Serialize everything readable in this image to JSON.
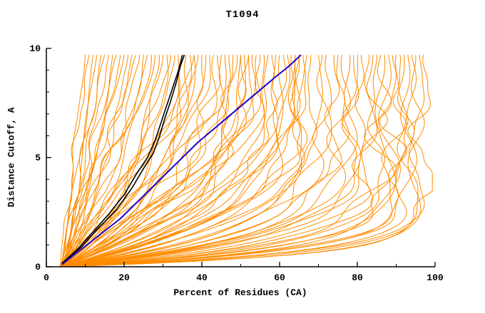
{
  "chart_data": {
    "type": "line",
    "title": "T1094",
    "xlabel": "Percent of Residues (CA)",
    "ylabel": "Distance Cutoff, A",
    "xlim": [
      0,
      100
    ],
    "ylim": [
      0,
      10
    ],
    "x_ticks": [
      0,
      20,
      40,
      60,
      80,
      100
    ],
    "x_minor_ticks": [
      10,
      30,
      50,
      70,
      90
    ],
    "y_ticks": [
      0,
      5,
      10
    ],
    "y_minor_ticks": [
      1,
      2,
      3,
      4,
      6,
      7,
      8,
      9
    ],
    "grid": false,
    "legend": "none",
    "background": "#FFFFFF",
    "axis_color": "#000000",
    "y_top": 9.7,
    "ensemble": {
      "name": "server-model-curves",
      "color": "#FF8C00",
      "width": 1,
      "curves_format": "[x_at_cutoff0, x_at_cutoff_top, shape_exponent]",
      "curves": [
        [
          4,
          10,
          1.0
        ],
        [
          3.5,
          11,
          0.9
        ],
        [
          4,
          12,
          1.1
        ],
        [
          5,
          13,
          1.0
        ],
        [
          4.5,
          14,
          1.2
        ],
        [
          3.8,
          15,
          0.95
        ],
        [
          4.2,
          16,
          1.1
        ],
        [
          5,
          17,
          1.3
        ],
        [
          4,
          18,
          1.0
        ],
        [
          4.6,
          19,
          1.2
        ],
        [
          3.6,
          20,
          1.1
        ],
        [
          4,
          21,
          1.4
        ],
        [
          5,
          22,
          1.2
        ],
        [
          4.3,
          23,
          1.0
        ],
        [
          3.9,
          24,
          1.3
        ],
        [
          4.1,
          25,
          1.5
        ],
        [
          4,
          26,
          1.2
        ],
        [
          4.5,
          27,
          1.6
        ],
        [
          3.7,
          28,
          1.3
        ],
        [
          4.2,
          29,
          1.8
        ],
        [
          5,
          30,
          1.5
        ],
        [
          4,
          31,
          2.0
        ],
        [
          4.4,
          32,
          1.4
        ],
        [
          3.8,
          33,
          1.7
        ],
        [
          4.1,
          34,
          2.1
        ],
        [
          4.6,
          35,
          1.6
        ],
        [
          4,
          36,
          1.9
        ],
        [
          4.3,
          37,
          2.2
        ],
        [
          3.6,
          38,
          1.5
        ],
        [
          4.8,
          38,
          2.4
        ],
        [
          4,
          39,
          1.8
        ],
        [
          4.2,
          40,
          2.0
        ],
        [
          4,
          41,
          2.3
        ],
        [
          4.5,
          42,
          1.9
        ],
        [
          3.8,
          43,
          2.6
        ],
        [
          4.2,
          44,
          2.2
        ],
        [
          4,
          45,
          2.8
        ],
        [
          4.6,
          46,
          2.0
        ],
        [
          3.9,
          47,
          2.5
        ],
        [
          4.3,
          48,
          3.0
        ],
        [
          4,
          49,
          2.3
        ],
        [
          4.4,
          50,
          2.7
        ],
        [
          3.7,
          50,
          3.2
        ],
        [
          4.1,
          51,
          2.4
        ],
        [
          4.5,
          52,
          2.9
        ],
        [
          4,
          52,
          2.2
        ],
        [
          4.2,
          53,
          3.1
        ],
        [
          3.8,
          54,
          2.6
        ],
        [
          4,
          55,
          3.0
        ],
        [
          4.4,
          56,
          3.5
        ],
        [
          3.9,
          57,
          2.8
        ],
        [
          4.2,
          58,
          3.8
        ],
        [
          4,
          59,
          3.2
        ],
        [
          4.5,
          60,
          4.2
        ],
        [
          3.8,
          61,
          3.4
        ],
        [
          4.1,
          62,
          4.5
        ],
        [
          4.3,
          63,
          3.7
        ],
        [
          4,
          64,
          4.8
        ],
        [
          4.2,
          64,
          3.3
        ],
        [
          3.9,
          65,
          4.0
        ],
        [
          4.4,
          65,
          5.0
        ],
        [
          4,
          66,
          3.6
        ],
        [
          4,
          67,
          4.5
        ],
        [
          4.3,
          68,
          5.5
        ],
        [
          3.9,
          70,
          5.0
        ],
        [
          4.1,
          71,
          6.0
        ],
        [
          4.4,
          72,
          5.2
        ],
        [
          4,
          74,
          6.5
        ],
        [
          4.2,
          75,
          5.8
        ],
        [
          3.8,
          76,
          7.0
        ],
        [
          4.5,
          78,
          6.2
        ],
        [
          4,
          79,
          7.5
        ],
        [
          4.2,
          80,
          6.8
        ],
        [
          4,
          81,
          7
        ],
        [
          4.3,
          83,
          8
        ],
        [
          3.9,
          84,
          9
        ],
        [
          4.1,
          85,
          10
        ],
        [
          4.4,
          86,
          8.5
        ],
        [
          4,
          87,
          11
        ],
        [
          4.2,
          88,
          12
        ],
        [
          3.8,
          89,
          10
        ],
        [
          4.5,
          90,
          12
        ],
        [
          4,
          91,
          13
        ],
        [
          4.2,
          92,
          15
        ],
        [
          3.9,
          93,
          12
        ],
        [
          4.1,
          94,
          16
        ],
        [
          4.3,
          95,
          18
        ],
        [
          4,
          96,
          14
        ],
        [
          4.2,
          97,
          17
        ]
      ]
    },
    "highlights": [
      {
        "name": "highlight-curve-black-1",
        "color": "#000000",
        "width": 1.6,
        "points": [
          [
            4,
            0.15
          ],
          [
            8,
            0.8
          ],
          [
            12,
            1.6
          ],
          [
            16,
            2.4
          ],
          [
            20,
            3.3
          ],
          [
            23,
            4.2
          ],
          [
            26,
            5.0
          ],
          [
            28,
            5.8
          ],
          [
            29.5,
            6.6
          ],
          [
            31,
            7.4
          ],
          [
            32.5,
            8.2
          ],
          [
            34,
            9.0
          ],
          [
            35,
            9.7
          ]
        ]
      },
      {
        "name": "highlight-curve-black-2",
        "color": "#000000",
        "width": 1.6,
        "points": [
          [
            4,
            0.15
          ],
          [
            9,
            0.9
          ],
          [
            13,
            1.7
          ],
          [
            18,
            2.6
          ],
          [
            22,
            3.6
          ],
          [
            25,
            4.5
          ],
          [
            27.5,
            5.2
          ],
          [
            29,
            5.9
          ],
          [
            30.5,
            6.8
          ],
          [
            32,
            7.6
          ],
          [
            33.5,
            8.5
          ],
          [
            34.5,
            9.2
          ],
          [
            35.5,
            9.7
          ]
        ]
      },
      {
        "name": "highlight-curve-blue",
        "color": "#2200CC",
        "width": 2,
        "points": [
          [
            4,
            0.1
          ],
          [
            9,
            0.8
          ],
          [
            14,
            1.5
          ],
          [
            19,
            2.2
          ],
          [
            23,
            2.9
          ],
          [
            27,
            3.6
          ],
          [
            31,
            4.3
          ],
          [
            35,
            5.0
          ],
          [
            39,
            5.7
          ],
          [
            43,
            6.3
          ],
          [
            47,
            6.9
          ],
          [
            51,
            7.5
          ],
          [
            55,
            8.1
          ],
          [
            59,
            8.7
          ],
          [
            62.5,
            9.2
          ],
          [
            65.5,
            9.7
          ]
        ]
      }
    ]
  }
}
